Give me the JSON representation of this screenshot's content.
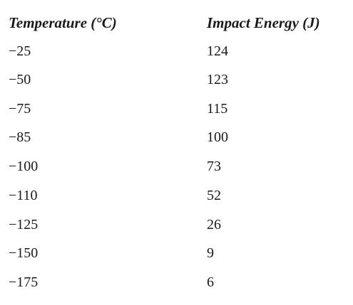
{
  "table": {
    "headers": {
      "temperature": "Temperature (°C)",
      "impact_energy": "Impact Energy (J)"
    },
    "rows": [
      {
        "temperature": "−25",
        "impact_energy": "124"
      },
      {
        "temperature": "−50",
        "impact_energy": "123"
      },
      {
        "temperature": "−75",
        "impact_energy": "115"
      },
      {
        "temperature": "−85",
        "impact_energy": "100"
      },
      {
        "temperature": "−100",
        "impact_energy": "73"
      },
      {
        "temperature": "−110",
        "impact_energy": "52"
      },
      {
        "temperature": "−125",
        "impact_energy": "26"
      },
      {
        "temperature": "−150",
        "impact_energy": "9"
      },
      {
        "temperature": "−175",
        "impact_energy": "6"
      }
    ]
  }
}
